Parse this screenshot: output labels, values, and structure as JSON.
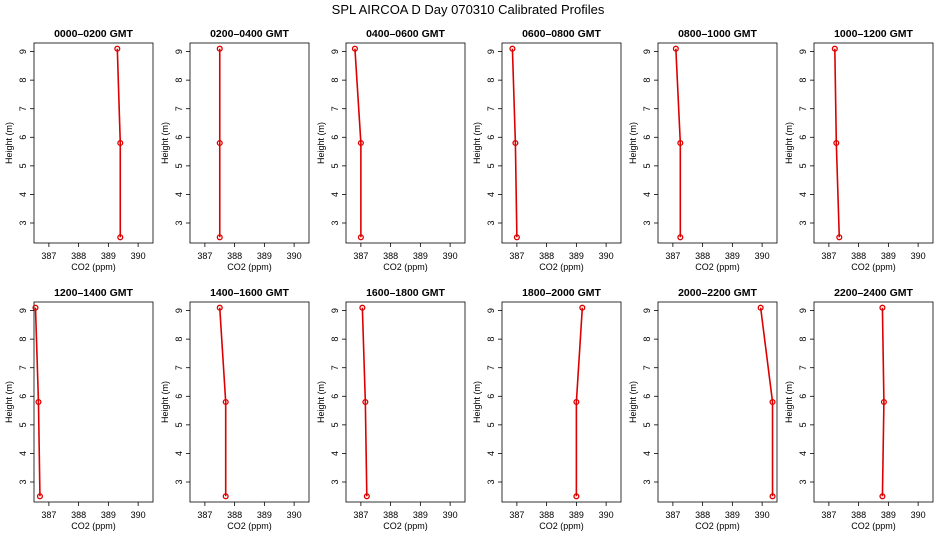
{
  "main_title": "SPL AIRCOA D  Day 070310  Calibrated Profiles",
  "colors": {
    "series": "#dd0000",
    "axis": "#000000"
  },
  "chart_data": [
    {
      "type": "line",
      "title": "0000–0200 GMT",
      "xlabel": "CO2 (ppm)",
      "ylabel": "Height (m)",
      "xlim": [
        386.5,
        390.5
      ],
      "ylim": [
        2.3,
        9.3
      ],
      "xticks": [
        387,
        388,
        389,
        390
      ],
      "yticks": [
        3,
        4,
        5,
        6,
        7,
        8,
        9
      ],
      "points": [
        {
          "x": 389.4,
          "y": 2.5
        },
        {
          "x": 389.4,
          "y": 5.8
        },
        {
          "x": 389.3,
          "y": 9.1
        }
      ]
    },
    {
      "type": "line",
      "title": "0200–0400 GMT",
      "xlabel": "CO2 (ppm)",
      "ylabel": "Height (m)",
      "xlim": [
        386.5,
        390.5
      ],
      "ylim": [
        2.3,
        9.3
      ],
      "xticks": [
        387,
        388,
        389,
        390
      ],
      "yticks": [
        3,
        4,
        5,
        6,
        7,
        8,
        9
      ],
      "points": [
        {
          "x": 387.5,
          "y": 2.5
        },
        {
          "x": 387.5,
          "y": 5.8
        },
        {
          "x": 387.5,
          "y": 9.1
        }
      ]
    },
    {
      "type": "line",
      "title": "0400–0600 GMT",
      "xlabel": "CO2 (ppm)",
      "ylabel": "Height (m)",
      "xlim": [
        386.5,
        390.5
      ],
      "ylim": [
        2.3,
        9.3
      ],
      "xticks": [
        387,
        388,
        389,
        390
      ],
      "yticks": [
        3,
        4,
        5,
        6,
        7,
        8,
        9
      ],
      "points": [
        {
          "x": 387.0,
          "y": 2.5
        },
        {
          "x": 387.0,
          "y": 5.8
        },
        {
          "x": 386.8,
          "y": 9.1
        }
      ]
    },
    {
      "type": "line",
      "title": "0600–0800 GMT",
      "xlabel": "CO2 (ppm)",
      "ylabel": "Height (m)",
      "xlim": [
        386.5,
        390.5
      ],
      "ylim": [
        2.3,
        9.3
      ],
      "xticks": [
        387,
        388,
        389,
        390
      ],
      "yticks": [
        3,
        4,
        5,
        6,
        7,
        8,
        9
      ],
      "points": [
        {
          "x": 387.0,
          "y": 2.5
        },
        {
          "x": 386.95,
          "y": 5.8
        },
        {
          "x": 386.85,
          "y": 9.1
        }
      ]
    },
    {
      "type": "line",
      "title": "0800–1000 GMT",
      "xlabel": "CO2 (ppm)",
      "ylabel": "Height (m)",
      "xlim": [
        386.5,
        390.5
      ],
      "ylim": [
        2.3,
        9.3
      ],
      "xticks": [
        387,
        388,
        389,
        390
      ],
      "yticks": [
        3,
        4,
        5,
        6,
        7,
        8,
        9
      ],
      "points": [
        {
          "x": 387.25,
          "y": 2.5
        },
        {
          "x": 387.25,
          "y": 5.8
        },
        {
          "x": 387.1,
          "y": 9.1
        }
      ]
    },
    {
      "type": "line",
      "title": "1000–1200 GMT",
      "xlabel": "CO2 (ppm)",
      "ylabel": "Height (m)",
      "xlim": [
        386.5,
        390.5
      ],
      "ylim": [
        2.3,
        9.3
      ],
      "xticks": [
        387,
        388,
        389,
        390
      ],
      "yticks": [
        3,
        4,
        5,
        6,
        7,
        8,
        9
      ],
      "points": [
        {
          "x": 387.35,
          "y": 2.5
        },
        {
          "x": 387.25,
          "y": 5.8
        },
        {
          "x": 387.2,
          "y": 9.1
        }
      ]
    },
    {
      "type": "line",
      "title": "1200–1400 GMT",
      "xlabel": "CO2 (ppm)",
      "ylabel": "Height (m)",
      "xlim": [
        386.5,
        390.5
      ],
      "ylim": [
        2.3,
        9.3
      ],
      "xticks": [
        387,
        388,
        389,
        390
      ],
      "yticks": [
        3,
        4,
        5,
        6,
        7,
        8,
        9
      ],
      "points": [
        {
          "x": 386.7,
          "y": 2.5
        },
        {
          "x": 386.65,
          "y": 5.8
        },
        {
          "x": 386.55,
          "y": 9.1
        }
      ]
    },
    {
      "type": "line",
      "title": "1400–1600 GMT",
      "xlabel": "CO2 (ppm)",
      "ylabel": "Height (m)",
      "xlim": [
        386.5,
        390.5
      ],
      "ylim": [
        2.3,
        9.3
      ],
      "xticks": [
        387,
        388,
        389,
        390
      ],
      "yticks": [
        3,
        4,
        5,
        6,
        7,
        8,
        9
      ],
      "points": [
        {
          "x": 387.7,
          "y": 2.5
        },
        {
          "x": 387.7,
          "y": 5.8
        },
        {
          "x": 387.5,
          "y": 9.1
        }
      ]
    },
    {
      "type": "line",
      "title": "1600–1800 GMT",
      "xlabel": "CO2 (ppm)",
      "ylabel": "Height (m)",
      "xlim": [
        386.5,
        390.5
      ],
      "ylim": [
        2.3,
        9.3
      ],
      "xticks": [
        387,
        388,
        389,
        390
      ],
      "yticks": [
        3,
        4,
        5,
        6,
        7,
        8,
        9
      ],
      "points": [
        {
          "x": 387.2,
          "y": 2.5
        },
        {
          "x": 387.15,
          "y": 5.8
        },
        {
          "x": 387.05,
          "y": 9.1
        }
      ]
    },
    {
      "type": "line",
      "title": "1800–2000 GMT",
      "xlabel": "CO2 (ppm)",
      "ylabel": "Height (m)",
      "xlim": [
        386.5,
        390.5
      ],
      "ylim": [
        2.3,
        9.3
      ],
      "xticks": [
        387,
        388,
        389,
        390
      ],
      "yticks": [
        3,
        4,
        5,
        6,
        7,
        8,
        9
      ],
      "points": [
        {
          "x": 389.0,
          "y": 2.5
        },
        {
          "x": 389.0,
          "y": 5.8
        },
        {
          "x": 389.2,
          "y": 9.1
        }
      ]
    },
    {
      "type": "line",
      "title": "2000–2200 GMT",
      "xlabel": "CO2 (ppm)",
      "ylabel": "Height (m)",
      "xlim": [
        386.5,
        390.5
      ],
      "ylim": [
        2.3,
        9.3
      ],
      "xticks": [
        387,
        388,
        389,
        390
      ],
      "yticks": [
        3,
        4,
        5,
        6,
        7,
        8,
        9
      ],
      "points": [
        {
          "x": 390.35,
          "y": 2.5
        },
        {
          "x": 390.35,
          "y": 5.8
        },
        {
          "x": 389.95,
          "y": 9.1
        }
      ]
    },
    {
      "type": "line",
      "title": "2200–2400 GMT",
      "xlabel": "CO2 (ppm)",
      "ylabel": "Height (m)",
      "xlim": [
        386.5,
        390.5
      ],
      "ylim": [
        2.3,
        9.3
      ],
      "xticks": [
        387,
        388,
        389,
        390
      ],
      "yticks": [
        3,
        4,
        5,
        6,
        7,
        8,
        9
      ],
      "points": [
        {
          "x": 388.8,
          "y": 2.5
        },
        {
          "x": 388.85,
          "y": 5.8
        },
        {
          "x": 388.8,
          "y": 9.1
        }
      ]
    }
  ]
}
